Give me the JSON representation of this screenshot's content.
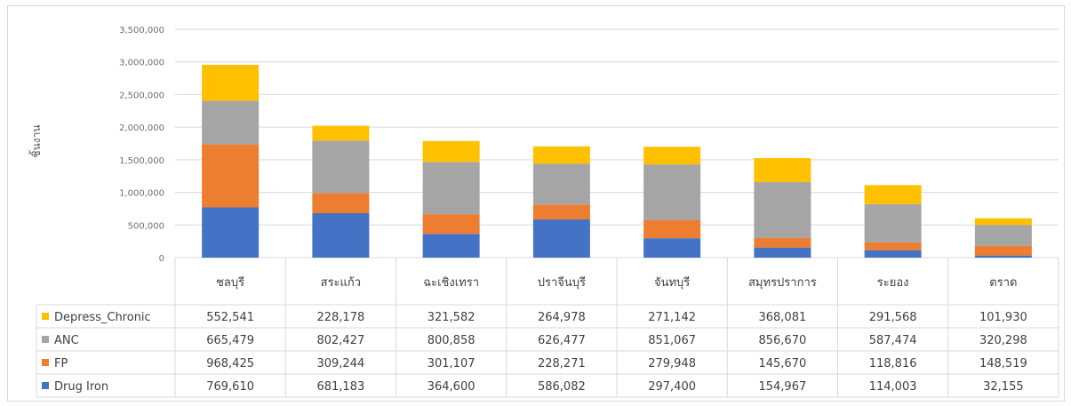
{
  "chart_data": {
    "type": "bar",
    "stacked": true,
    "title": "",
    "xlabel": "",
    "ylabel": "ชิ้นงาน",
    "ylim": [
      0,
      3500000
    ],
    "yticks": [
      0,
      500000,
      1000000,
      1500000,
      2000000,
      2500000,
      3000000,
      3500000
    ],
    "ytick_labels": [
      "0",
      "500,000",
      "1,000,000",
      "1,500,000",
      "2,000,000",
      "2,500,000",
      "3,000,000",
      "3,500,000"
    ],
    "grid": true,
    "legend": "data-table-rows",
    "categories": [
      "ชลบุรี",
      "สระแก้ว",
      "ฉะเชิงเทรา",
      "ปราจีนบุรี",
      "จันทบุรี",
      "สมุทรปราการ",
      "ระยอง",
      "ตราด"
    ],
    "series": [
      {
        "name": "Drug Iron",
        "color": "#4472c4",
        "values": [
          769610,
          681183,
          364600,
          586082,
          297400,
          154967,
          114003,
          32155
        ],
        "labels": [
          "769,610",
          "681,183",
          "364,600",
          "586,082",
          "297,400",
          "154,967",
          "114,003",
          "32,155"
        ]
      },
      {
        "name": "FP",
        "color": "#ed7d31",
        "values": [
          968425,
          309244,
          301107,
          228271,
          279948,
          145670,
          118816,
          148519
        ],
        "labels": [
          "968,425",
          "309,244",
          "301,107",
          "228,271",
          "279,948",
          "145,670",
          "118,816",
          "148,519"
        ]
      },
      {
        "name": "ANC",
        "color": "#a5a5a5",
        "values": [
          665479,
          802427,
          800858,
          626477,
          851067,
          856670,
          587474,
          320298
        ],
        "labels": [
          "665,479",
          "802,427",
          "800,858",
          "626,477",
          "851,067",
          "856,670",
          "587,474",
          "320,298"
        ]
      },
      {
        "name": "Depress_Chronic",
        "color": "#ffc000",
        "values": [
          552541,
          228178,
          321582,
          264978,
          271142,
          368081,
          291568,
          101930
        ],
        "labels": [
          "552,541",
          "228,178",
          "321,582",
          "264,978",
          "271,142",
          "368,081",
          "291,568",
          "101,930"
        ]
      }
    ]
  }
}
